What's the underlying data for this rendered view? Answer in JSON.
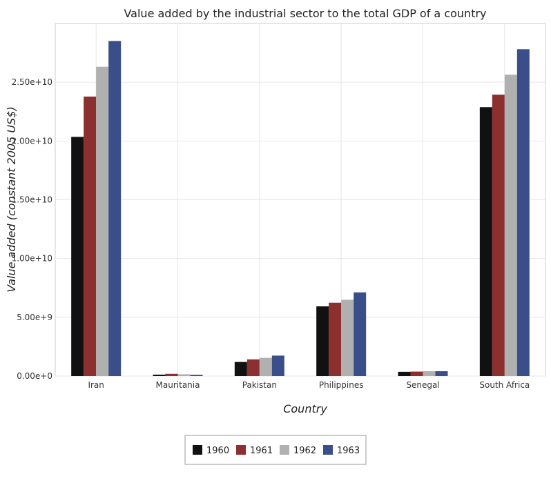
{
  "chart_data": {
    "type": "bar",
    "title": "Value added by the industrial sector to the total GDP of a country",
    "xlabel": "Country",
    "ylabel": "Value added (constant 2005 US$)",
    "categories": [
      "Iran",
      "Mauritania",
      "Pakistan",
      "Philippines",
      "Senegal",
      "South Africa"
    ],
    "series": [
      {
        "name": "1960",
        "color": "#111111",
        "values": [
          20350000000.0,
          120000000.0,
          1200000000.0,
          5930000000.0,
          360000000.0,
          22880000000.0
        ]
      },
      {
        "name": "1961",
        "color": "#8b2f2f",
        "values": [
          23780000000.0,
          190000000.0,
          1420000000.0,
          6240000000.0,
          380000000.0,
          23940000000.0
        ]
      },
      {
        "name": "1962",
        "color": "#b0b0b0",
        "values": [
          26320000000.0,
          150000000.0,
          1550000000.0,
          6490000000.0,
          410000000.0,
          25640000000.0
        ]
      },
      {
        "name": "1963",
        "color": "#3a4f8a",
        "values": [
          28510000000.0,
          110000000.0,
          1740000000.0,
          7120000000.0,
          410000000.0,
          27810000000.0
        ]
      }
    ],
    "ylim": [
      0,
      30000000000.0
    ],
    "yticks": [
      0,
      5000000000.0,
      10000000000.0,
      15000000000.0,
      20000000000.0,
      25000000000.0
    ],
    "ytick_labels": [
      "0.00e+0",
      "5.00e+9",
      "1.00e+10",
      "1.50e+10",
      "2.00e+10",
      "2.50e+10"
    ],
    "grid": true,
    "legend_position": "bottom-center"
  }
}
